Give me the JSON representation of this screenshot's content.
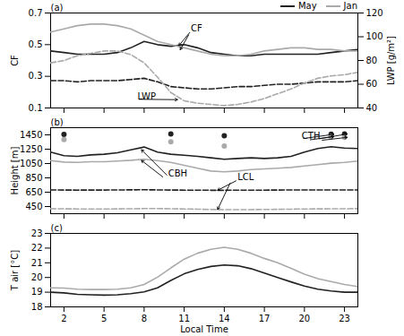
{
  "chart_data": [
    {
      "type": "line",
      "x": [
        1,
        2,
        3,
        4,
        5,
        6,
        7,
        8,
        9,
        10,
        11,
        12,
        13,
        14,
        15,
        16,
        17,
        18,
        19,
        20,
        21,
        22,
        23,
        24
      ],
      "xlim": [
        1,
        24
      ],
      "xticks": [
        2,
        5,
        8,
        11,
        14,
        17,
        20,
        23
      ],
      "ylabel": "CF",
      "ylim": [
        0.1,
        0.7
      ],
      "yticks": [
        0.1,
        0.3,
        0.5,
        0.7
      ],
      "y2label": "LWP [g/m²]",
      "y2lim": [
        40,
        120
      ],
      "y2ticks": [
        40,
        60,
        80,
        100,
        120
      ],
      "tick_labels": "y",
      "grid": false,
      "legend": "upper right",
      "series": [
        {
          "name": "May",
          "color": "#222222",
          "line_style": "solid",
          "values": [
            0.46,
            0.45,
            0.44,
            0.44,
            0.44,
            0.45,
            0.48,
            0.52,
            0.5,
            0.49,
            0.5,
            0.48,
            0.45,
            0.44,
            0.43,
            0.43,
            0.44,
            0.44,
            0.44,
            0.44,
            0.44,
            0.45,
            0.46,
            0.47
          ]
        },
        {
          "name": "Jan",
          "color": "#aaaaaa",
          "line_style": "solid",
          "values": [
            0.58,
            0.6,
            0.62,
            0.63,
            0.63,
            0.62,
            0.6,
            0.56,
            0.52,
            0.5,
            0.48,
            0.46,
            0.44,
            0.43,
            0.43,
            0.44,
            0.46,
            0.47,
            0.48,
            0.48,
            0.47,
            0.47,
            0.46,
            0.46
          ]
        },
        {
          "name": "May",
          "color": "#222222",
          "line_style": "dashed",
          "axis": "y2",
          "values": [
            63,
            63,
            62,
            63,
            63,
            63,
            64,
            65,
            62,
            58,
            57,
            56,
            56,
            57,
            58,
            58,
            59,
            60,
            60,
            61,
            62,
            62,
            62,
            63
          ]
        },
        {
          "name": "Jan",
          "color": "#aaaaaa",
          "line_style": "dashed",
          "axis": "y2",
          "values": [
            78,
            80,
            84,
            86,
            88,
            88,
            85,
            78,
            66,
            53,
            46,
            44,
            43,
            42,
            43,
            45,
            48,
            52,
            56,
            61,
            65,
            67,
            68,
            70
          ]
        }
      ],
      "annotations": [
        {
          "text": "(a)"
        },
        {
          "text": "CF",
          "x": 11.5,
          "y": 0.585,
          "arrows": [
            {
              "x1": 11.5,
              "y1": 0.585,
              "x2": 10.6,
              "y2": 0.494
            },
            {
              "x1": 11.4,
              "y1": 0.571,
              "x2": 10.7,
              "y2": 0.468
            }
          ]
        },
        {
          "text": "LWP",
          "x": 7.5,
          "y": 0.155,
          "arrows": [
            {
              "x1": 7.5,
              "y1": 0.155,
              "x2": 10.5,
              "y2": 0.1525
            }
          ]
        }
      ]
    },
    {
      "type": "line",
      "x": [
        1,
        2,
        3,
        4,
        5,
        6,
        7,
        8,
        9,
        10,
        11,
        12,
        13,
        14,
        15,
        16,
        17,
        18,
        19,
        20,
        21,
        22,
        23,
        24
      ],
      "xlim": [
        1,
        24
      ],
      "xticks": [
        2,
        5,
        8,
        11,
        14,
        17,
        20,
        23
      ],
      "ylabel": "Height [m]",
      "ylim": [
        350,
        1550
      ],
      "yticks": [
        450,
        650,
        850,
        1050,
        1250,
        1450
      ],
      "tick_labels": "y",
      "grid": false,
      "series": [
        {
          "name": "May",
          "color": "#222222",
          "line_style": "solid",
          "values": [
            1210,
            1160,
            1150,
            1170,
            1180,
            1200,
            1240,
            1280,
            1210,
            1180,
            1165,
            1150,
            1130,
            1110,
            1120,
            1130,
            1120,
            1130,
            1150,
            1210,
            1260,
            1285,
            1265,
            1260
          ]
        },
        {
          "name": "Jan",
          "color": "#aaaaaa",
          "line_style": "solid",
          "values": [
            1090,
            1070,
            1065,
            1075,
            1075,
            1085,
            1095,
            1110,
            1090,
            1065,
            1025,
            985,
            945,
            935,
            945,
            965,
            975,
            985,
            995,
            1015,
            1035,
            1055,
            1065,
            1085
          ]
        },
        {
          "name": "May",
          "color": "#222222",
          "line_style": "dashed",
          "values": [
            682,
            680,
            679,
            680,
            680,
            681,
            683,
            684,
            682,
            680,
            679,
            678,
            677,
            677,
            678,
            679,
            679,
            680,
            681,
            681,
            682,
            682,
            682,
            682
          ]
        },
        {
          "name": "Jan",
          "color": "#aaaaaa",
          "line_style": "dashed",
          "values": [
            420,
            418,
            416,
            416,
            416,
            417,
            419,
            421,
            421,
            419,
            416,
            413,
            409,
            406,
            406,
            407,
            409,
            411,
            413,
            416,
            417,
            418,
            419,
            421
          ]
        },
        {
          "name": "May",
          "color": "#222222",
          "type": "scatter",
          "marker": "circle",
          "x": [
            2,
            10,
            14,
            22,
            23
          ],
          "values": [
            1455,
            1462,
            1438,
            1458,
            1462
          ]
        },
        {
          "name": "Jan",
          "color": "#aaaaaa",
          "type": "scatter",
          "marker": "circle",
          "x": [
            2,
            10,
            14,
            22,
            23
          ],
          "values": [
            1385,
            1352,
            1295,
            1425,
            1415
          ]
        }
      ],
      "annotations": [
        {
          "text": "(b)"
        },
        {
          "text": "CBH",
          "x": 9.8,
          "y": 870,
          "arrows": [
            {
              "x1": 9.8,
              "y1": 870,
              "x2": 7.8,
              "y2": 1242
            },
            {
              "x1": 9.5,
              "y1": 848,
              "x2": 7.8,
              "y2": 1094
            }
          ]
        },
        {
          "text": "LCL",
          "x": 15.0,
          "y": 820,
          "arrows": [
            {
              "x1": 15.0,
              "y1": 820,
              "x2": 13.5,
              "y2": 677
            },
            {
              "x1": 14.5,
              "y1": 800,
              "x2": 13.5,
              "y2": 409
            }
          ]
        },
        {
          "text": "CTH",
          "x": 19.8,
          "y": 1395,
          "arrows": [
            {
              "x1": 19.8,
              "y1": 1395,
              "x2": 22.2,
              "y2": 1458
            },
            {
              "x1": 21.0,
              "y1": 1392,
              "x2": 23.2,
              "y2": 1462
            },
            {
              "x1": 20.3,
              "y1": 1378,
              "x2": 22.2,
              "y2": 1425
            },
            {
              "x1": 21.2,
              "y1": 1372,
              "x2": 23.2,
              "y2": 1415
            }
          ]
        }
      ]
    },
    {
      "type": "line",
      "x": [
        1,
        2,
        3,
        4,
        5,
        6,
        7,
        8,
        9,
        10,
        11,
        12,
        13,
        14,
        15,
        16,
        17,
        18,
        19,
        20,
        21,
        22,
        23,
        24
      ],
      "xlim": [
        1,
        24
      ],
      "xticks": [
        2,
        5,
        8,
        11,
        14,
        17,
        20,
        23
      ],
      "xlabel": "Local Time",
      "ylabel": "T air [°C]",
      "ylim": [
        18,
        23
      ],
      "yticks": [
        18,
        19,
        20,
        21,
        22,
        23
      ],
      "grid": false,
      "series": [
        {
          "name": "May",
          "color": "#222222",
          "line_style": "solid",
          "values": [
            19.0,
            18.95,
            18.85,
            18.82,
            18.8,
            18.82,
            18.9,
            19.02,
            19.3,
            19.8,
            20.25,
            20.55,
            20.75,
            20.85,
            20.8,
            20.6,
            20.3,
            20.0,
            19.7,
            19.42,
            19.2,
            19.08,
            19.0,
            19.0
          ]
        },
        {
          "name": "Jan",
          "color": "#aaaaaa",
          "line_style": "solid",
          "values": [
            19.3,
            19.28,
            19.2,
            19.18,
            19.18,
            19.2,
            19.3,
            19.52,
            20.02,
            20.65,
            21.25,
            21.65,
            21.92,
            22.05,
            21.92,
            21.65,
            21.3,
            21.0,
            20.62,
            20.22,
            19.92,
            19.72,
            19.52,
            19.38
          ]
        }
      ],
      "annotations": [
        {
          "text": "(c)"
        }
      ]
    }
  ]
}
